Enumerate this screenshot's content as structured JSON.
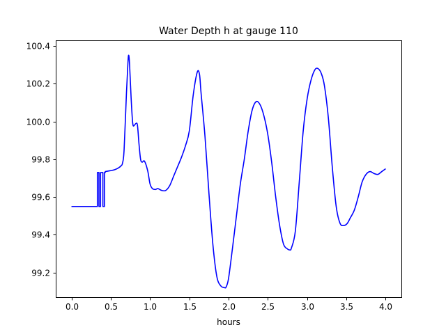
{
  "chart_data": {
    "type": "line",
    "title": "Water Depth h at gauge 110",
    "xlabel": "hours",
    "ylabel": "",
    "xlim": [
      -0.2,
      4.2
    ],
    "ylim": [
      99.07,
      100.43
    ],
    "xticks": [
      0.0,
      0.5,
      1.0,
      1.5,
      2.0,
      2.5,
      3.0,
      3.5,
      4.0
    ],
    "xtick_labels": [
      "0.0",
      "0.5",
      "1.0",
      "1.5",
      "2.0",
      "2.5",
      "3.0",
      "3.5",
      "4.0"
    ],
    "yticks": [
      99.2,
      99.4,
      99.6,
      99.8,
      100.0,
      100.2,
      100.4
    ],
    "ytick_labels": [
      "99.2",
      "99.4",
      "99.6",
      "99.8",
      "100.0",
      "100.2",
      "100.4"
    ],
    "grid": false,
    "series": [
      {
        "color": "#0000ff",
        "x": [
          0.0,
          0.1,
          0.2,
          0.3,
          0.33,
          0.33,
          0.35,
          0.35,
          0.37,
          0.37,
          0.4,
          0.4,
          0.42,
          0.42,
          0.43,
          0.43,
          0.5,
          0.55,
          0.6,
          0.63,
          0.65,
          0.67,
          0.7,
          0.72,
          0.73,
          0.74,
          0.76,
          0.78,
          0.8,
          0.82,
          0.84,
          0.86,
          0.88,
          0.9,
          0.93,
          0.97,
          1.0,
          1.03,
          1.07,
          1.1,
          1.15,
          1.2,
          1.25,
          1.3,
          1.35,
          1.4,
          1.45,
          1.5,
          1.55,
          1.6,
          1.63,
          1.65,
          1.7,
          1.75,
          1.8,
          1.85,
          1.9,
          1.95,
          1.97,
          2.0,
          2.05,
          2.1,
          2.15,
          2.2,
          2.25,
          2.3,
          2.35,
          2.4,
          2.45,
          2.5,
          2.55,
          2.6,
          2.65,
          2.7,
          2.75,
          2.78,
          2.8,
          2.85,
          2.9,
          2.95,
          3.0,
          3.05,
          3.1,
          3.14,
          3.18,
          3.22,
          3.27,
          3.32,
          3.37,
          3.42,
          3.47,
          3.51,
          3.55,
          3.6,
          3.65,
          3.7,
          3.75,
          3.8,
          3.85,
          3.9,
          3.95,
          4.0
        ],
        "y": [
          99.55,
          99.55,
          99.55,
          99.55,
          99.55,
          99.73,
          99.73,
          99.55,
          99.55,
          99.73,
          99.73,
          99.55,
          99.55,
          99.73,
          99.73,
          99.735,
          99.74,
          99.745,
          99.755,
          99.765,
          99.78,
          99.85,
          100.15,
          100.32,
          100.35,
          100.3,
          100.12,
          99.99,
          99.98,
          99.99,
          99.98,
          99.88,
          99.8,
          99.785,
          99.79,
          99.74,
          99.67,
          99.645,
          99.64,
          99.645,
          99.635,
          99.635,
          99.66,
          99.71,
          99.76,
          99.81,
          99.87,
          99.95,
          100.14,
          100.26,
          100.25,
          100.15,
          99.92,
          99.62,
          99.35,
          99.18,
          99.13,
          99.12,
          99.125,
          99.17,
          99.33,
          99.5,
          99.67,
          99.8,
          99.95,
          100.06,
          100.105,
          100.09,
          100.03,
          99.93,
          99.78,
          99.6,
          99.45,
          99.35,
          99.325,
          99.32,
          99.33,
          99.42,
          99.68,
          99.95,
          100.12,
          100.22,
          100.275,
          100.28,
          100.255,
          100.19,
          100.02,
          99.76,
          99.55,
          99.46,
          99.45,
          99.46,
          99.49,
          99.53,
          99.6,
          99.68,
          99.72,
          99.735,
          99.725,
          99.72,
          99.735,
          99.75
        ]
      }
    ]
  }
}
